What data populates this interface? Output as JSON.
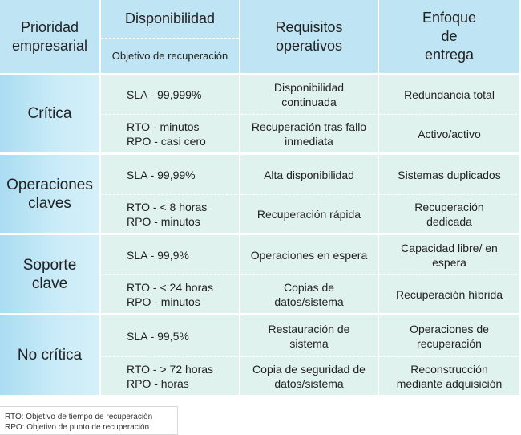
{
  "header": {
    "col1": "Prioridad empresarial",
    "col2_top": "Disponibilidad",
    "col2_bottom": "Objetivo de recuperación",
    "col3": "Requisitos operativos",
    "col4": "Enfoque de entrega"
  },
  "groups": [
    {
      "priority": "Crítica",
      "rows": [
        {
          "availability": [
            "SLA - 99,999%"
          ],
          "requirements": "Disponibilidad continuada",
          "approach": "Redundancia total"
        },
        {
          "availability": [
            "RTO - minutos",
            "RPO - casi cero"
          ],
          "requirements": "Recuperación tras fallo inmediata",
          "approach": "Activo/activo"
        }
      ]
    },
    {
      "priority": "Operaciones claves",
      "rows": [
        {
          "availability": [
            "SLA - 99,99%"
          ],
          "requirements": "Alta disponibilidad",
          "approach": "Sistemas duplicados"
        },
        {
          "availability": [
            "RTO - < 8 horas",
            "RPO - minutos"
          ],
          "requirements": "Recuperación rápida",
          "approach": "Recuperación dedicada"
        }
      ]
    },
    {
      "priority": "Soporte clave",
      "rows": [
        {
          "availability": [
            "SLA - 99,9%"
          ],
          "requirements": "Operaciones en espera",
          "approach": "Capacidad libre/ en espera"
        },
        {
          "availability": [
            "RTO - < 24 horas",
            "RPO - minutos"
          ],
          "requirements": "Copias de datos/sistema",
          "approach": "Recuperación híbrida"
        }
      ]
    },
    {
      "priority": "No crítica",
      "rows": [
        {
          "availability": [
            "SLA - 99,5%"
          ],
          "requirements": "Restauración de sistema",
          "approach": "Operaciones de recuperación"
        },
        {
          "availability": [
            "RTO - > 72 horas",
            "RPO - horas"
          ],
          "requirements": "Copia de seguridad de datos/sistema",
          "approach": "Reconstrucción mediante adquisición"
        }
      ]
    }
  ],
  "notes": [
    "RTO: Objetivo de tiempo de recuperación",
    "RPO: Objetivo de punto de recuperación"
  ]
}
